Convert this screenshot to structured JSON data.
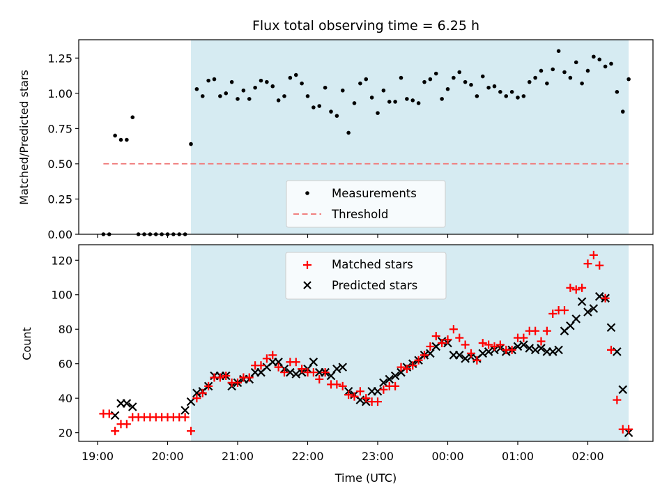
{
  "colors": {
    "span": "#add8e6",
    "measurements": "#000000",
    "threshold": "#f08080",
    "matched": "#ff0000",
    "predicted": "#000000"
  },
  "chart_data": [
    {
      "type": "scatter",
      "title": "Flux total observing time = 6.25 h",
      "xlabel": "",
      "ylabel": "Matched/Predicted stars",
      "ylim": [
        0,
        1.38
      ],
      "yticks": [
        0.0,
        0.25,
        0.5,
        0.75,
        1.0,
        1.25
      ],
      "ytick_labels": [
        "0.00",
        "0.25",
        "0.50",
        "0.75",
        "1.00",
        "1.25"
      ],
      "grid": false,
      "legend_position": "lower-center",
      "legend": [
        "Measurements",
        "Threshold"
      ],
      "shaded_span": [
        "20:20",
        "02:35"
      ],
      "threshold": {
        "name": "Threshold",
        "y": 0.5,
        "x": [
          "19:05",
          "02:35"
        ]
      },
      "series": [
        {
          "name": "Measurements",
          "x": [
            "19:05",
            "19:10",
            "19:15",
            "19:20",
            "19:25",
            "19:30",
            "19:35",
            "19:40",
            "19:45",
            "19:50",
            "19:55",
            "20:00",
            "20:05",
            "20:10",
            "20:15",
            "20:20",
            "20:25",
            "20:30",
            "20:35",
            "20:40",
            "20:45",
            "20:50",
            "20:55",
            "21:00",
            "21:05",
            "21:10",
            "21:15",
            "21:20",
            "21:25",
            "21:30",
            "21:35",
            "21:40",
            "21:45",
            "21:50",
            "21:55",
            "22:00",
            "22:05",
            "22:10",
            "22:15",
            "22:20",
            "22:25",
            "22:30",
            "22:35",
            "22:40",
            "22:45",
            "22:50",
            "22:55",
            "23:00",
            "23:05",
            "23:10",
            "23:15",
            "23:20",
            "23:25",
            "23:30",
            "23:35",
            "23:40",
            "23:45",
            "23:50",
            "23:55",
            "00:00",
            "00:05",
            "00:10",
            "00:15",
            "00:20",
            "00:25",
            "00:30",
            "00:35",
            "00:40",
            "00:45",
            "00:50",
            "00:55",
            "01:00",
            "01:05",
            "01:10",
            "01:15",
            "01:20",
            "01:25",
            "01:30",
            "01:35",
            "01:40",
            "01:45",
            "01:50",
            "01:55",
            "02:00",
            "02:05",
            "02:10",
            "02:15",
            "02:20",
            "02:25",
            "02:30",
            "02:35"
          ],
          "y": [
            0,
            0,
            0.7,
            0.67,
            0.67,
            0.83,
            0,
            0,
            0,
            0,
            0,
            0,
            0,
            0,
            0,
            0.64,
            1.03,
            0.98,
            1.09,
            1.1,
            0.98,
            1.0,
            1.08,
            0.96,
            1.02,
            0.96,
            1.04,
            1.09,
            1.08,
            1.05,
            0.95,
            0.98,
            1.11,
            1.13,
            1.07,
            0.98,
            0.9,
            0.91,
            1.04,
            0.87,
            0.84,
            1.02,
            0.72,
            0.93,
            1.07,
            1.1,
            0.97,
            0.86,
            1.02,
            0.94,
            0.94,
            1.11,
            0.96,
            0.95,
            0.93,
            1.08,
            1.1,
            1.14,
            0.96,
            1.03,
            1.11,
            1.15,
            1.08,
            1.06,
            0.98,
            1.12,
            1.04,
            1.05,
            1.01,
            0.98,
            1.01,
            0.97,
            0.98,
            1.08,
            1.11,
            1.16,
            1.07,
            1.17,
            1.3,
            1.15,
            1.11,
            1.22,
            1.07,
            1.16,
            1.26,
            1.24,
            1.19,
            1.21,
            1.01,
            0.87,
            1.1
          ]
        }
      ]
    },
    {
      "type": "scatter",
      "title": "",
      "xlabel": "Time (UTC)",
      "ylabel": "Count",
      "ylim": [
        15,
        129
      ],
      "yticks": [
        20,
        40,
        60,
        80,
        100,
        120
      ],
      "ytick_labels": [
        "20",
        "40",
        "60",
        "80",
        "100",
        "120"
      ],
      "xtick_labels": [
        "19:00",
        "20:00",
        "21:00",
        "22:00",
        "23:00",
        "00:00",
        "01:00",
        "02:00"
      ],
      "grid": false,
      "legend_position": "upper-center",
      "legend": [
        "Matched stars",
        "Predicted stars"
      ],
      "shaded_span": [
        "20:20",
        "02:35"
      ],
      "series": [
        {
          "name": "Matched stars",
          "x": [
            "19:05",
            "19:10",
            "19:15",
            "19:20",
            "19:25",
            "19:30",
            "19:35",
            "19:40",
            "19:45",
            "19:50",
            "19:55",
            "20:00",
            "20:05",
            "20:10",
            "20:15",
            "20:20",
            "20:25",
            "20:30",
            "20:35",
            "20:40",
            "20:45",
            "20:50",
            "20:55",
            "21:00",
            "21:05",
            "21:10",
            "21:15",
            "21:20",
            "21:25",
            "21:30",
            "21:35",
            "21:40",
            "21:45",
            "21:50",
            "21:55",
            "22:00",
            "22:05",
            "22:10",
            "22:15",
            "22:20",
            "22:25",
            "22:30",
            "22:35",
            "22:40",
            "22:45",
            "22:50",
            "22:55",
            "23:00",
            "23:05",
            "23:10",
            "23:15",
            "23:20",
            "23:25",
            "23:30",
            "23:35",
            "23:40",
            "23:45",
            "23:50",
            "23:55",
            "00:00",
            "00:05",
            "00:10",
            "00:15",
            "00:20",
            "00:25",
            "00:30",
            "00:35",
            "00:40",
            "00:45",
            "00:50",
            "00:55",
            "01:00",
            "01:05",
            "01:10",
            "01:15",
            "01:20",
            "01:25",
            "01:30",
            "01:35",
            "01:40",
            "01:45",
            "01:50",
            "01:55",
            "02:00",
            "02:05",
            "02:10",
            "02:15",
            "02:20",
            "02:25",
            "02:30",
            "02:35"
          ],
          "y": [
            31,
            31,
            21,
            25,
            25,
            29,
            29,
            29,
            29,
            29,
            29,
            29,
            29,
            29,
            29,
            21,
            40,
            43,
            47,
            52,
            52,
            53,
            49,
            49,
            52,
            52,
            59,
            59,
            63,
            65,
            58,
            55,
            61,
            61,
            57,
            55,
            55,
            51,
            55,
            48,
            48,
            47,
            42,
            41,
            44,
            40,
            38,
            38,
            45,
            47,
            47,
            58,
            57,
            59,
            62,
            65,
            70,
            76,
            72,
            74,
            80,
            75,
            71,
            66,
            62,
            72,
            71,
            70,
            71,
            68,
            68,
            75,
            75,
            79,
            79,
            73,
            79,
            89,
            91,
            91,
            104,
            103,
            104,
            118,
            123,
            117,
            98,
            68,
            39,
            22,
            22
          ]
        },
        {
          "name": "Predicted stars",
          "x": [
            "19:15",
            "19:20",
            "19:25",
            "19:30",
            "20:15",
            "20:20",
            "20:25",
            "20:30",
            "20:35",
            "20:40",
            "20:45",
            "20:50",
            "20:55",
            "21:00",
            "21:05",
            "21:10",
            "21:15",
            "21:20",
            "21:25",
            "21:30",
            "21:35",
            "21:40",
            "21:45",
            "21:50",
            "21:55",
            "22:00",
            "22:05",
            "22:10",
            "22:15",
            "22:20",
            "22:25",
            "22:30",
            "22:35",
            "22:40",
            "22:45",
            "22:50",
            "22:55",
            "23:00",
            "23:05",
            "23:10",
            "23:15",
            "23:20",
            "23:25",
            "23:30",
            "23:35",
            "23:40",
            "23:45",
            "23:50",
            "23:55",
            "00:00",
            "00:05",
            "00:10",
            "00:15",
            "00:20",
            "00:25",
            "00:30",
            "00:35",
            "00:40",
            "00:45",
            "00:50",
            "00:55",
            "01:00",
            "01:05",
            "01:10",
            "01:15",
            "01:20",
            "01:25",
            "01:30",
            "01:35",
            "01:40",
            "01:45",
            "01:50",
            "01:55",
            "02:00",
            "02:05",
            "02:10",
            "02:15",
            "02:20",
            "02:25",
            "02:30",
            "02:35"
          ],
          "y": [
            30,
            37,
            37,
            35,
            33,
            38,
            43,
            44,
            47,
            53,
            53,
            53,
            47,
            49,
            51,
            51,
            55,
            55,
            58,
            61,
            61,
            57,
            55,
            54,
            55,
            57,
            61,
            55,
            55,
            53,
            57,
            58,
            44,
            42,
            39,
            38,
            44,
            44,
            49,
            51,
            53,
            55,
            58,
            60,
            62,
            65,
            66,
            70,
            73,
            72,
            65,
            65,
            63,
            64,
            63,
            66,
            67,
            68,
            69,
            67,
            68,
            70,
            71,
            69,
            68,
            69,
            67,
            67,
            68,
            79,
            82,
            86,
            96,
            90,
            92,
            99,
            98,
            81,
            67,
            45,
            20
          ]
        }
      ]
    }
  ]
}
